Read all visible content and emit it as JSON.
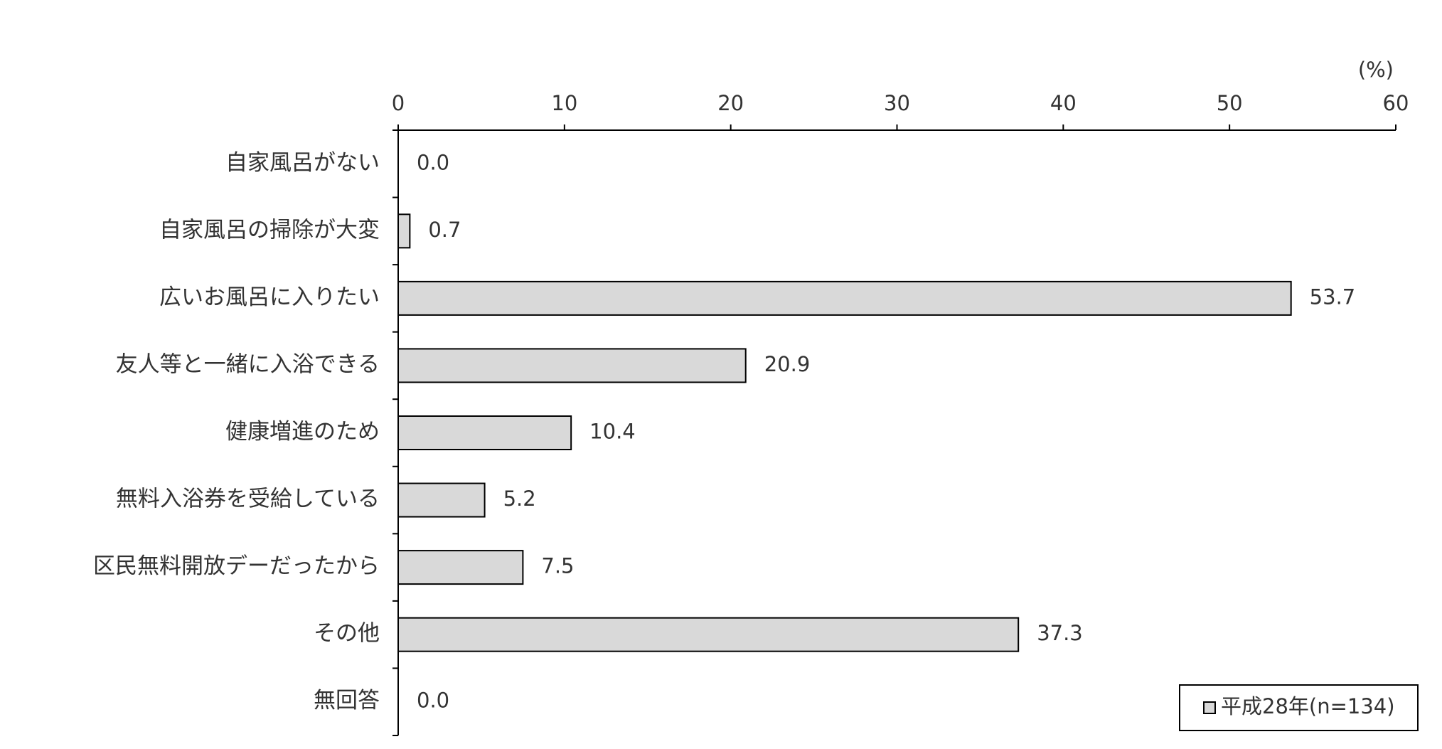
{
  "chart_data": {
    "type": "barh",
    "unit_label": "(%)",
    "categories": [
      "自家風呂がない",
      "自家風呂の掃除が大変",
      "広いお風呂に入りたい",
      "友人等と一緒に入浴できる",
      "健康増進のため",
      "無料入浴券を受給している",
      "区民無料開放デーだったから",
      "その他",
      "無回答"
    ],
    "series": [
      {
        "name": "平成28年(n=134)",
        "color": "#d9d9d9",
        "values": [
          0.0,
          0.7,
          53.7,
          20.9,
          10.4,
          5.2,
          7.5,
          37.3,
          0.0
        ],
        "value_labels": [
          "0.0",
          "0.7",
          "53.7",
          "20.9",
          "10.4",
          "5.2",
          "7.5",
          "37.3",
          "0.0"
        ]
      }
    ],
    "xlim": [
      0,
      60
    ],
    "xticks": [
      0,
      10,
      20,
      30,
      40,
      50,
      60
    ],
    "legend": "bottom-right"
  }
}
